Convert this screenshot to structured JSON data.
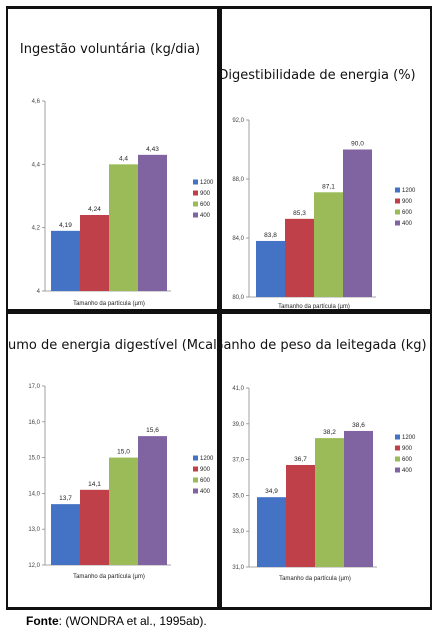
{
  "caption": {
    "label": "Fonte",
    "text": ": (WONDRA et al., 1995ab)."
  },
  "colors": {
    "1200": "#4472c4",
    "900": "#c0404a",
    "600": "#9bbb59",
    "400": "#8064a2"
  },
  "chart_data": [
    {
      "type": "bar",
      "title": "Ingestão voluntária (kg/dia)",
      "xlabel": "Tamanho da partícula (µm)",
      "ylabel": "",
      "categories": [
        "1200",
        "900",
        "600",
        "400"
      ],
      "values": [
        4.19,
        4.24,
        4.4,
        4.43
      ],
      "value_labels": [
        "4,19",
        "4,24",
        "4,4",
        "4,43"
      ],
      "ylim": [
        4,
        4.6
      ],
      "yticks": [
        4,
        4.2,
        4.4,
        4.6
      ],
      "ytick_labels": [
        "4",
        "4,2",
        "4,4",
        "4,6"
      ],
      "legend": [
        "1200",
        "900",
        "600",
        "400"
      ],
      "legend_position": "right",
      "grid": false
    },
    {
      "type": "bar",
      "title": "Digestibilidade de energia (%)",
      "xlabel": "Tamanho da partícula (µm)",
      "ylabel": "",
      "categories": [
        "1200",
        "900",
        "600",
        "400"
      ],
      "values": [
        83.8,
        85.3,
        87.1,
        90.0
      ],
      "value_labels": [
        "83,8",
        "85,3",
        "87,1",
        "90,0"
      ],
      "ylim": [
        80,
        92
      ],
      "yticks": [
        80,
        84,
        88,
        92
      ],
      "ytick_labels": [
        "80,0",
        "84,0",
        "88,0",
        "92,0"
      ],
      "legend": [
        "1200",
        "900",
        "600",
        "400"
      ],
      "legend_position": "right",
      "grid": false
    },
    {
      "type": "bar",
      "title": "Consumo de energia digestível (Mcal/dia)",
      "xlabel": "Tamanho da partícula (µm)",
      "ylabel": "",
      "categories": [
        "1200",
        "900",
        "600",
        "400"
      ],
      "values": [
        13.7,
        14.1,
        15.0,
        15.6
      ],
      "value_labels": [
        "13,7",
        "14,1",
        "15,0",
        "15,6"
      ],
      "ylim": [
        12,
        17
      ],
      "yticks": [
        12,
        13,
        14,
        15,
        16,
        17
      ],
      "ytick_labels": [
        "12,0",
        "13,0",
        "14,0",
        "15,0",
        "16,0",
        "17,0"
      ],
      "legend": [
        "1200",
        "900",
        "600",
        "400"
      ],
      "legend_position": "right",
      "grid": false
    },
    {
      "type": "bar",
      "title": "Ganho de peso da leitegada (kg)",
      "xlabel": "Tamanho da partícula (µm)",
      "ylabel": "",
      "categories": [
        "1200",
        "900",
        "600",
        "400"
      ],
      "values": [
        34.9,
        36.7,
        38.2,
        38.6
      ],
      "value_labels": [
        "34,9",
        "36,7",
        "38,2",
        "38,6"
      ],
      "ylim": [
        31,
        41
      ],
      "yticks": [
        31,
        33,
        35,
        37,
        39,
        41
      ],
      "ytick_labels": [
        "31,0",
        "33,0",
        "35,0",
        "37,0",
        "39,0",
        "41,0"
      ],
      "legend": [
        "1200",
        "900",
        "600",
        "400"
      ],
      "legend_position": "right",
      "grid": false
    }
  ]
}
